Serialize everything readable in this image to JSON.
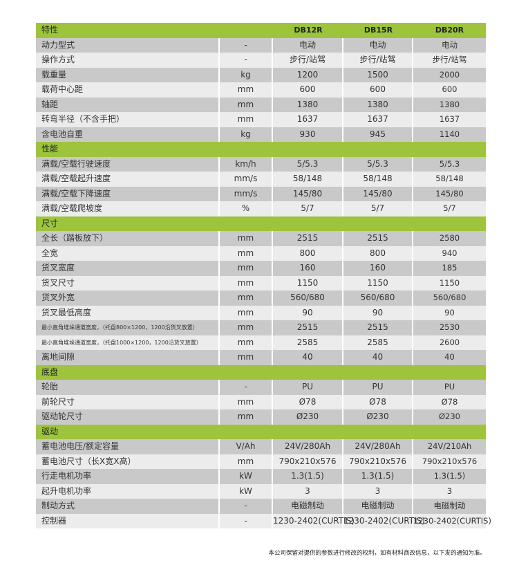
{
  "header": {
    "label": "特性",
    "models": [
      "DB12R",
      "DB15R",
      "DB20R"
    ]
  },
  "sections": [
    {
      "title": "",
      "rows": [
        [
          "动力型式",
          "-",
          "电动",
          "电动",
          "电动"
        ],
        [
          "操作方式",
          "-",
          "步行/站驾",
          "步行/站驾",
          "步行/站驾"
        ],
        [
          "载重量",
          "kg",
          "1200",
          "1500",
          "2000"
        ],
        [
          "载荷中心距",
          "mm",
          "600",
          "600",
          "600"
        ],
        [
          "轴距",
          "mm",
          "1380",
          "1380",
          "1380"
        ],
        [
          "转弯半径（不含手把）",
          "mm",
          "1637",
          "1637",
          "1637"
        ],
        [
          "含电池自重",
          "kg",
          "930",
          "945",
          "1140"
        ]
      ]
    },
    {
      "title": "性能",
      "rows": [
        [
          "满载/空载行驶速度",
          "km/h",
          "5/5.3",
          "5/5.3",
          "5/5.3"
        ],
        [
          "满载/空载起升速度",
          "mm/s",
          "58/148",
          "58/148",
          "58/148"
        ],
        [
          "满载/空载下降速度",
          "mm/s",
          "145/80",
          "145/80",
          "145/80"
        ],
        [
          "满载/空载爬坡度",
          "%",
          "5/7",
          "5/7",
          "5/7"
        ]
      ]
    },
    {
      "title": "尺寸",
      "rows": [
        [
          "全长（踏板放下）",
          "mm",
          "2515",
          "2515",
          "2580"
        ],
        [
          "全宽",
          "mm",
          "800",
          "800",
          "940"
        ],
        [
          "货叉宽度",
          "mm",
          "160",
          "160",
          "185"
        ],
        [
          "货叉尺寸",
          "mm",
          "1150",
          "1150",
          "1150"
        ],
        [
          "货叉外宽",
          "mm",
          "560/680",
          "560/680",
          "560/680"
        ],
        [
          "货叉最低高度",
          "mm",
          "90",
          "90",
          "90"
        ],
        [
          "最小直角堆垛通道宽度，（托盘800×1200，1200沿货叉放置）",
          "mm",
          "2515",
          "2515",
          "2530"
        ],
        [
          "最小直角堆垛通道宽度，（托盘1000×1200，1200沿货叉放置）",
          "mm",
          "2585",
          "2585",
          "2600"
        ],
        [
          "离地间隙",
          "mm",
          "40",
          "40",
          "40"
        ]
      ]
    },
    {
      "title": "底盘",
      "rows": [
        [
          "轮胎",
          "-",
          "PU",
          "PU",
          "PU"
        ],
        [
          "前轮尺寸",
          "mm",
          "Ø78",
          "Ø78",
          "Ø78"
        ],
        [
          "驱动轮尺寸",
          "mm",
          "Ø230",
          "Ø230",
          "Ø230"
        ]
      ]
    },
    {
      "title": "驱动",
      "rows": [
        [
          "蓄电池电压/额定容量",
          "V/Ah",
          "24V/280Ah",
          "24V/280Ah",
          "24V/210Ah"
        ],
        [
          "蓄电池尺寸（长X宽X高）",
          "mm",
          "790x210x576",
          "790x210x576",
          "790x210x576"
        ],
        [
          "行走电机功率",
          "kW",
          "1.3(1.5)",
          "1.3(1.5)",
          "1.3(1.5)"
        ],
        [
          "起升电机功率",
          "kW",
          "3",
          "3",
          "3"
        ],
        [
          "制动方式",
          "-",
          "电磁制动",
          "电磁制动",
          "电磁制动"
        ],
        [
          "控制器",
          "-",
          "1230-2402(CURTIS)",
          "1230-2402(CURTIS)",
          "1230-2402(CURTIS)"
        ]
      ]
    }
  ],
  "note": "本公司保留对提供的参数进行修改的权利，如有材料商改信息，以下发的通知为准。",
  "colors": {
    "section": "#9dc43c",
    "row_dark": "#c9c9c9",
    "row_light": "#ececec"
  }
}
